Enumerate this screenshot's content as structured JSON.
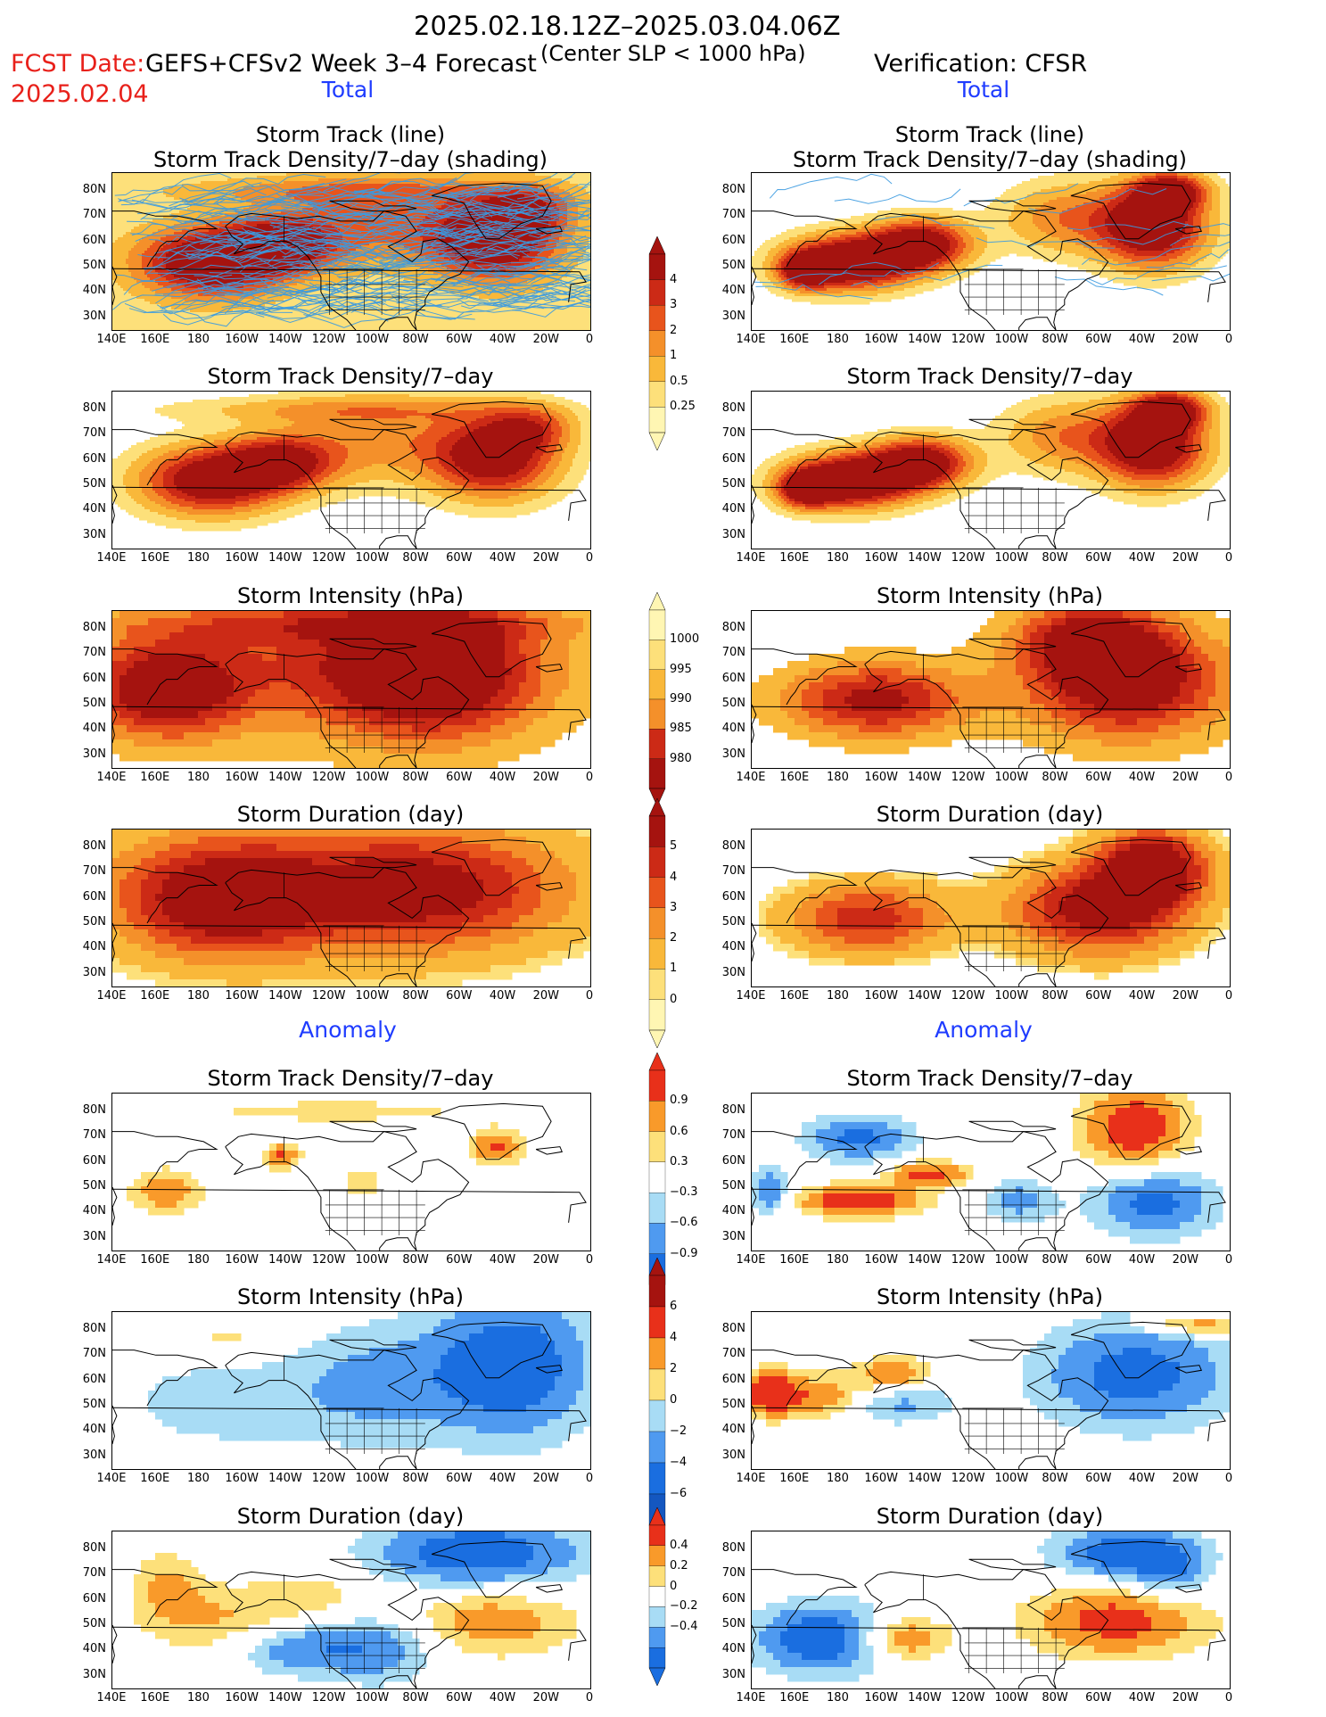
{
  "header": {
    "period": "2025.02.18.12Z–2025.03.04.06Z",
    "fcst_label": "FCST Date:",
    "fcst_date": "2025.02.04",
    "model": "GEFS+CFSv2 Week 3–4 Forecast",
    "criteria": "(Center SLP < 1000 hPa)",
    "verification": "Verification: CFSR"
  },
  "sections": {
    "total_left": "Total",
    "total_right": "Total",
    "anomaly_left": "Anomaly",
    "anomaly_right": "Anomaly"
  },
  "panel_titles": {
    "track_line": "Storm Track (line)",
    "track_shading": "Storm Track Density/7–day (shading)",
    "density": "Storm Track Density/7–day",
    "intensity": "Storm Intensity (hPa)",
    "duration": "Storm Duration (day)"
  },
  "axes": {
    "lat_ticks": [
      "80N",
      "70N",
      "60N",
      "50N",
      "40N",
      "30N"
    ],
    "lon_ticks": [
      "140E",
      "160E",
      "180",
      "160W",
      "140W",
      "120W",
      "100W",
      "80W",
      "60W",
      "40W",
      "20W",
      "0"
    ]
  },
  "colorbars": {
    "density_total": [
      "4",
      "3",
      "2",
      "1",
      "0.5",
      "0.25"
    ],
    "intensity_total": [
      "1000",
      "995",
      "990",
      "985",
      "980"
    ],
    "duration_total": [
      "5",
      "4",
      "3",
      "2",
      "1",
      "0"
    ],
    "density_anom": [
      "0.9",
      "0.6",
      "0.3",
      "−0.3",
      "−0.6",
      "−0.9"
    ],
    "intensity_anom": [
      "6",
      "4",
      "2",
      "0",
      "−2",
      "−4",
      "−6"
    ],
    "duration_anom": [
      "0.4",
      "0.2",
      "0",
      "−0.2",
      "−0.4"
    ]
  },
  "palettes": {
    "warm": [
      "#fff6b3",
      "#fde07a",
      "#f9b83a",
      "#f4902a",
      "#e8541c",
      "#cc2a16",
      "#a5130f"
    ],
    "diverging": [
      "#1a6ee0",
      "#4f9af0",
      "#a8dcf5",
      "#ffffff",
      "#fde07a",
      "#f99a2a",
      "#e8301a"
    ],
    "track_line_color": "#3b9ae0",
    "coast_color": "#000000"
  }
}
